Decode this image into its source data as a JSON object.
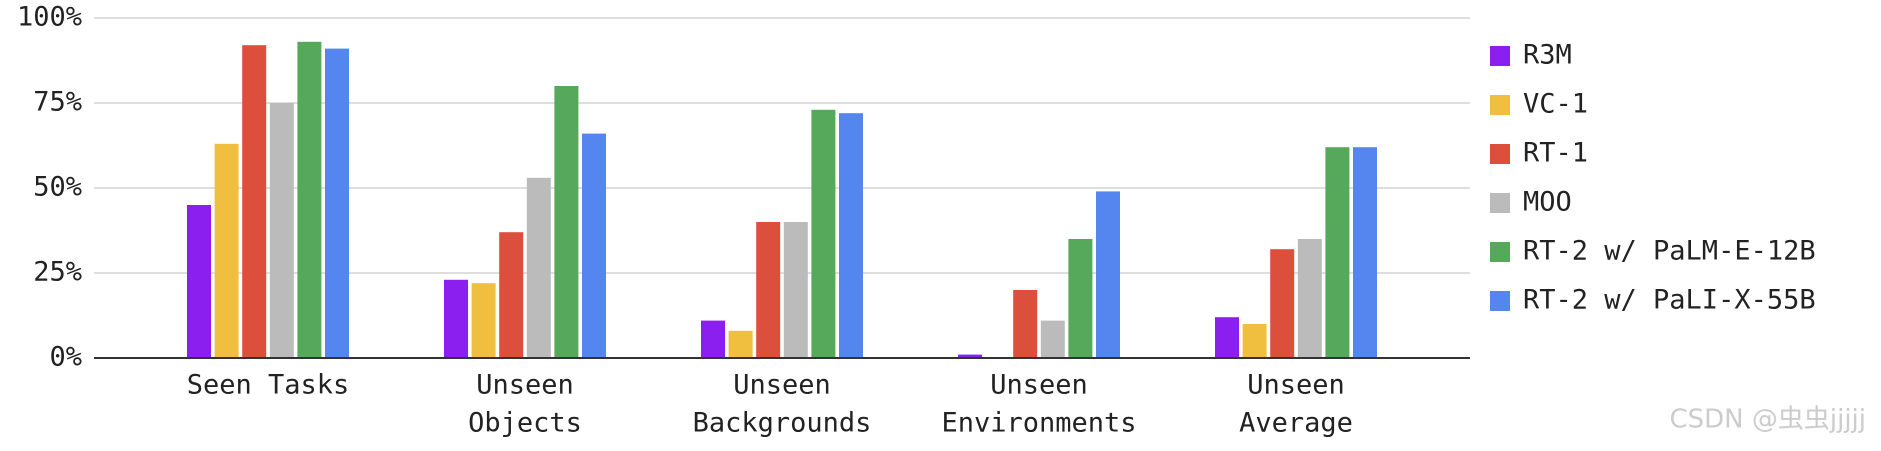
{
  "chart_data": {
    "type": "bar",
    "categories": [
      [
        "Seen Tasks"
      ],
      [
        "Unseen",
        "Objects"
      ],
      [
        "Unseen",
        "Backgrounds"
      ],
      [
        "Unseen",
        "Environments"
      ],
      [
        "Unseen",
        "Average"
      ]
    ],
    "series": [
      {
        "name": "R3M",
        "color": "#8a1ff0",
        "values": [
          45,
          23,
          11,
          1,
          12
        ]
      },
      {
        "name": "VC-1",
        "color": "#f0bf40",
        "values": [
          63,
          22,
          8,
          0,
          10
        ]
      },
      {
        "name": "RT-1",
        "color": "#dc4f3c",
        "values": [
          92,
          37,
          40,
          20,
          32
        ]
      },
      {
        "name": "MOO",
        "color": "#bbbbbb",
        "values": [
          75,
          53,
          40,
          11,
          35
        ]
      },
      {
        "name": "RT-2 w/ PaLM-E-12B",
        "color": "#56a85a",
        "values": [
          93,
          80,
          73,
          35,
          62
        ]
      },
      {
        "name": "RT-2 w/ PaLI-X-55B",
        "color": "#5585ee",
        "values": [
          91,
          66,
          72,
          49,
          62
        ]
      }
    ],
    "ylim": [
      0,
      100
    ],
    "yticks": [
      {
        "value": 0,
        "label": "0%"
      },
      {
        "value": 25,
        "label": "25%"
      },
      {
        "value": 50,
        "label": "50%"
      },
      {
        "value": 75,
        "label": "75%"
      },
      {
        "value": 100,
        "label": "100%"
      }
    ],
    "grid": true,
    "legend": "right",
    "watermark": "CSDN @虫虫jjjjj"
  }
}
